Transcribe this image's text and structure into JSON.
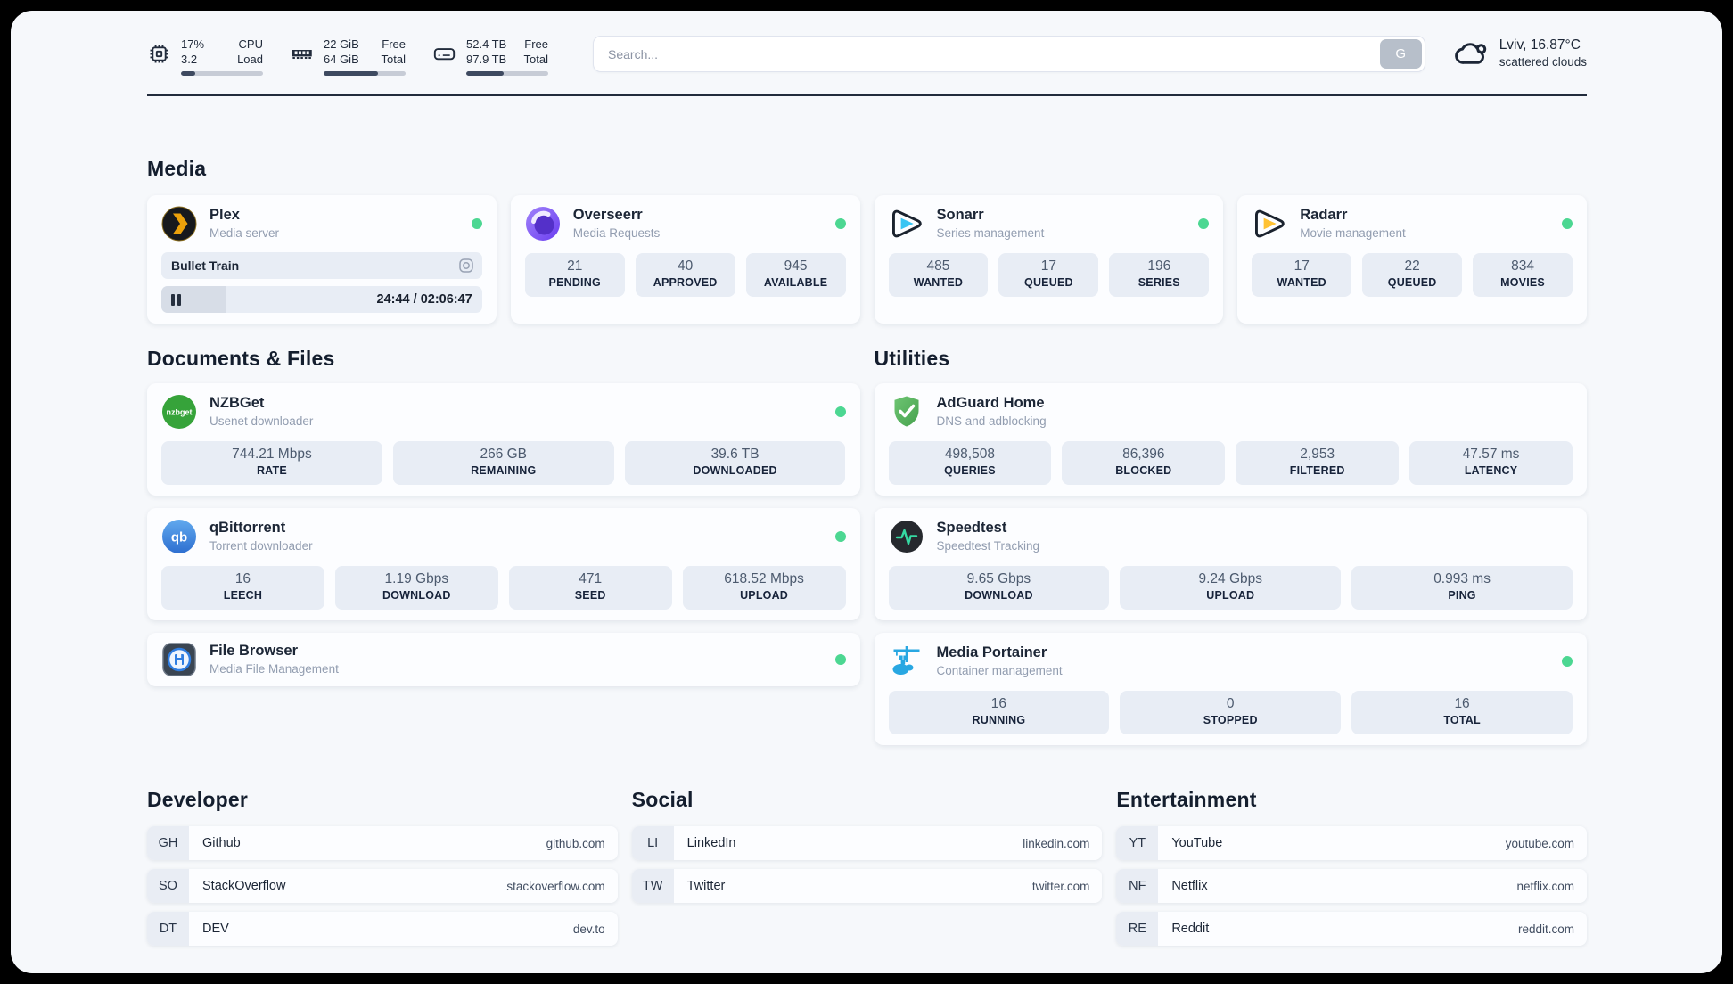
{
  "topbar": {
    "cpu": {
      "value_top": "17%",
      "value_bottom": "3.2",
      "label_top": "CPU",
      "label_bottom": "Load",
      "progress": 17
    },
    "memory": {
      "value_top": "22 GiB",
      "value_bottom": "64 GiB",
      "label_top": "Free",
      "label_bottom": "Total",
      "progress": 66
    },
    "storage": {
      "value_top": "52.4 TB",
      "value_bottom": "97.9 TB",
      "label_top": "Free",
      "label_bottom": "Total",
      "progress": 46
    },
    "search": {
      "placeholder": "Search...",
      "button_label": "G"
    },
    "weather": {
      "location": "Lviv, 16.87°C",
      "condition": "scattered clouds"
    }
  },
  "sections": {
    "media": "Media",
    "documents": "Documents & Files",
    "utilities": "Utilities",
    "developer": "Developer",
    "social": "Social",
    "entertainment": "Entertainment"
  },
  "apps": {
    "plex": {
      "name": "Plex",
      "description": "Media server",
      "now_playing": {
        "title": "Bullet Train",
        "time": "24:44 / 02:06:47",
        "progress_percent": 20
      }
    },
    "overseerr": {
      "name": "Overseerr",
      "description": "Media Requests",
      "stats": [
        {
          "value": "21",
          "label": "PENDING"
        },
        {
          "value": "40",
          "label": "APPROVED"
        },
        {
          "value": "945",
          "label": "AVAILABLE"
        }
      ]
    },
    "sonarr": {
      "name": "Sonarr",
      "description": "Series management",
      "stats": [
        {
          "value": "485",
          "label": "WANTED"
        },
        {
          "value": "17",
          "label": "QUEUED"
        },
        {
          "value": "196",
          "label": "SERIES"
        }
      ]
    },
    "radarr": {
      "name": "Radarr",
      "description": "Movie management",
      "stats": [
        {
          "value": "17",
          "label": "WANTED"
        },
        {
          "value": "22",
          "label": "QUEUED"
        },
        {
          "value": "834",
          "label": "MOVIES"
        }
      ]
    },
    "nzbget": {
      "name": "NZBGet",
      "description": "Usenet downloader",
      "icon_text": "nzbget",
      "stats": [
        {
          "value": "744.21 Mbps",
          "label": "RATE"
        },
        {
          "value": "266 GB",
          "label": "REMAINING"
        },
        {
          "value": "39.6 TB",
          "label": "DOWNLOADED"
        }
      ]
    },
    "qbittorrent": {
      "name": "qBittorrent",
      "description": "Torrent downloader",
      "icon_text": "qb",
      "stats": [
        {
          "value": "16",
          "label": "LEECH"
        },
        {
          "value": "1.19 Gbps",
          "label": "DOWNLOAD"
        },
        {
          "value": "471",
          "label": "SEED"
        },
        {
          "value": "618.52 Mbps",
          "label": "UPLOAD"
        }
      ]
    },
    "filebrowser": {
      "name": "File Browser",
      "description": "Media File Management"
    },
    "adguard": {
      "name": "AdGuard Home",
      "description": "DNS and adblocking",
      "stats": [
        {
          "value": "498,508",
          "label": "QUERIES"
        },
        {
          "value": "86,396",
          "label": "BLOCKED"
        },
        {
          "value": "2,953",
          "label": "FILTERED"
        },
        {
          "value": "47.57 ms",
          "label": "LATENCY"
        }
      ]
    },
    "speedtest": {
      "name": "Speedtest",
      "description": "Speedtest Tracking",
      "stats": [
        {
          "value": "9.65 Gbps",
          "label": "DOWNLOAD"
        },
        {
          "value": "9.24 Gbps",
          "label": "UPLOAD"
        },
        {
          "value": "0.993 ms",
          "label": "PING"
        }
      ]
    },
    "portainer": {
      "name": "Media Portainer",
      "description": "Container management",
      "stats": [
        {
          "value": "16",
          "label": "RUNNING"
        },
        {
          "value": "0",
          "label": "STOPPED"
        },
        {
          "value": "16",
          "label": "TOTAL"
        }
      ]
    }
  },
  "bookmarks": {
    "developer": [
      {
        "abbr": "GH",
        "name": "Github",
        "url": "github.com"
      },
      {
        "abbr": "SO",
        "name": "StackOverflow",
        "url": "stackoverflow.com"
      },
      {
        "abbr": "DT",
        "name": "DEV",
        "url": "dev.to"
      }
    ],
    "social": [
      {
        "abbr": "LI",
        "name": "LinkedIn",
        "url": "linkedin.com"
      },
      {
        "abbr": "TW",
        "name": "Twitter",
        "url": "twitter.com"
      }
    ],
    "entertainment": [
      {
        "abbr": "YT",
        "name": "YouTube",
        "url": "youtube.com"
      },
      {
        "abbr": "NF",
        "name": "Netflix",
        "url": "netflix.com"
      },
      {
        "abbr": "RE",
        "name": "Reddit",
        "url": "reddit.com"
      }
    ]
  },
  "colors": {
    "accent_green": "#4cd792",
    "progress_fill": "#3e4a60"
  }
}
